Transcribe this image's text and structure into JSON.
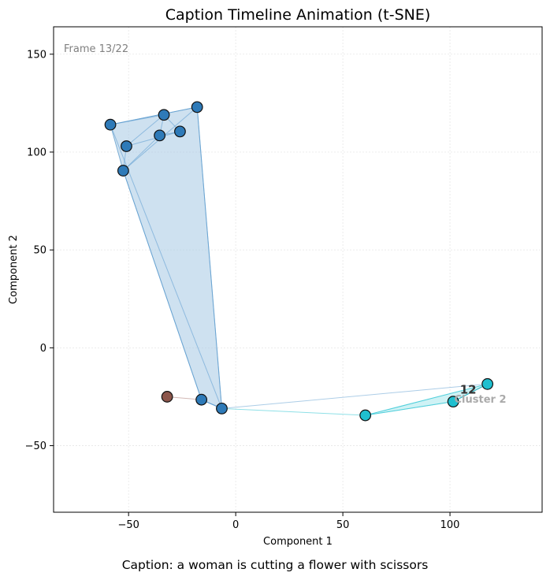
{
  "chart_data": {
    "type": "scatter",
    "title": "Caption Timeline Animation (t-SNE)",
    "xlabel": "Component 1",
    "ylabel": "Component 2",
    "xlim": [
      -85,
      143
    ],
    "ylim": [
      -84,
      164
    ],
    "xticks": [
      -50,
      0,
      50,
      100
    ],
    "yticks": [
      -50,
      0,
      50,
      100,
      150
    ],
    "grid": true,
    "frame_label": "Frame 13/22",
    "caption": "Caption: a woman is cutting a flower with scissors",
    "colors": {
      "cluster_blue": "#2e7ab8",
      "cluster_cyan": "#1fbfcf",
      "brown": "#8c564b",
      "hull_blue": "#a6c8e3",
      "hull_cyan": "#bfeef2"
    },
    "points": [
      {
        "x": -58.5,
        "y": 114,
        "group": "blue"
      },
      {
        "x": -33.5,
        "y": 119,
        "group": "blue"
      },
      {
        "x": -18,
        "y": 123,
        "group": "blue"
      },
      {
        "x": -51,
        "y": 103,
        "group": "blue"
      },
      {
        "x": -35.5,
        "y": 108.5,
        "group": "blue"
      },
      {
        "x": -26,
        "y": 110.5,
        "group": "blue"
      },
      {
        "x": -52.5,
        "y": 90.5,
        "group": "blue"
      },
      {
        "x": -16,
        "y": -26.5,
        "group": "blue"
      },
      {
        "x": -6.5,
        "y": -31,
        "group": "blue"
      },
      {
        "x": -32,
        "y": -25,
        "group": "brown"
      },
      {
        "x": 60.5,
        "y": -34.5,
        "group": "cyan"
      },
      {
        "x": 101.5,
        "y": -27.5,
        "group": "cyan"
      },
      {
        "x": 117.5,
        "y": -18.5,
        "group": "cyan"
      }
    ],
    "annotations": [
      {
        "text": "12",
        "x": 108.5,
        "y": -23.5
      },
      {
        "text": "Cluster 2",
        "x": 102,
        "y": -28
      }
    ]
  }
}
